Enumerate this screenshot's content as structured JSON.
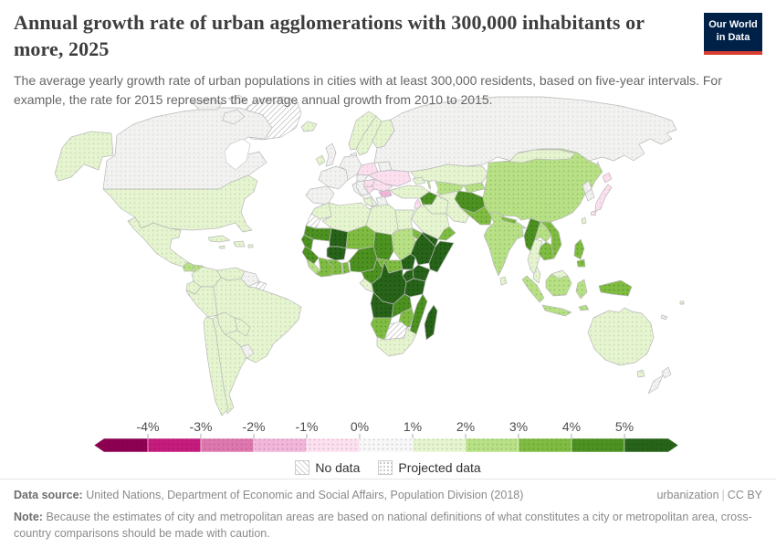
{
  "header": {
    "title": "Annual growth rate of urban agglomerations with 300,000 inhabitants or more, 2025",
    "subtitle": "The average yearly growth rate of urban populations in cities with at least 300,000 residents, based on five-year intervals. For example, the rate for 2015 represents the average annual growth from 2010 to 2015.",
    "logo": {
      "line1": "Our World",
      "line2": "in Data",
      "bg_color": "#002147",
      "accent_color": "#d73c32"
    }
  },
  "legend": {
    "tick_labels": [
      "-4%",
      "-3%",
      "-2%",
      "-1%",
      "0%",
      "1%",
      "2%",
      "3%",
      "4%",
      "5%"
    ],
    "colors": [
      "#8e0152",
      "#c51b7d",
      "#de77ae",
      "#f1b6da",
      "#fde0ef",
      "#f7f7f7",
      "#e6f5d0",
      "#b8e186",
      "#7fbc41",
      "#4d9221",
      "#276419"
    ],
    "no_data_label": "No data",
    "projected_label": "Projected data"
  },
  "footer": {
    "source_label": "Data source:",
    "source_text": "United Nations, Department of Economic and Social Affairs, Population Division (2018)",
    "link_label": "urbanization",
    "separator": "|",
    "license": "CC BY",
    "note_label": "Note:",
    "note_text": "Because the estimates of city and metropolitan areas are based on national definitions of what constitutes a city or metropolitan area, cross-country comparisons should be made with caution."
  },
  "chart_data": {
    "type": "choropleth",
    "title": "Annual growth rate of urban agglomerations with 300,000 inhabitants or more, 2025",
    "unit": "% per year",
    "scale": {
      "type": "diverging",
      "bins": [
        {
          "range": "< -4%",
          "color": "#8e0152"
        },
        {
          "range": "-4 to -3%",
          "color": "#c51b7d"
        },
        {
          "range": "-3 to -2%",
          "color": "#de77ae"
        },
        {
          "range": "-2 to -1%",
          "color": "#f1b6da"
        },
        {
          "range": "-1 to 0%",
          "color": "#fde0ef"
        },
        {
          "range": "0 to 1%",
          "color": "#f7f7f7"
        },
        {
          "range": "1 to 2%",
          "color": "#e6f5d0"
        },
        {
          "range": "2 to 3%",
          "color": "#b8e186"
        },
        {
          "range": "3 to 4%",
          "color": "#7fbc41"
        },
        {
          "range": "4 to 5%",
          "color": "#4d9221"
        },
        {
          "range": "> 5%",
          "color": "#276419"
        }
      ],
      "textures": {
        "all_values": "dotted (projected data)",
        "no_data": "diagonal hatch"
      }
    },
    "regions": [
      {
        "name": "Canada",
        "bin": "0 to 1%"
      },
      {
        "name": "United States",
        "bin": "1 to 2%"
      },
      {
        "name": "Greenland",
        "bin": "No data"
      },
      {
        "name": "Mexico",
        "bin": "1 to 2%"
      },
      {
        "name": "Guatemala",
        "bin": "2 to 3%"
      },
      {
        "name": "Honduras",
        "bin": "2 to 3%"
      },
      {
        "name": "Nicaragua",
        "bin": "1 to 2%"
      },
      {
        "name": "Panama",
        "bin": "1 to 2%"
      },
      {
        "name": "Cuba",
        "bin": "1 to 2%"
      },
      {
        "name": "Hispaniola",
        "bin": "1 to 2%"
      },
      {
        "name": "Colombia",
        "bin": "1 to 2%"
      },
      {
        "name": "Venezuela",
        "bin": "1 to 2%"
      },
      {
        "name": "Guyana",
        "bin": "0 to 1%"
      },
      {
        "name": "Suriname",
        "bin": "0 to 1%"
      },
      {
        "name": "French Guiana",
        "bin": "No data"
      },
      {
        "name": "Ecuador",
        "bin": "1 to 2%"
      },
      {
        "name": "Peru",
        "bin": "1 to 2%"
      },
      {
        "name": "Brazil",
        "bin": "1 to 2%"
      },
      {
        "name": "Bolivia",
        "bin": "1 to 2%"
      },
      {
        "name": "Paraguay",
        "bin": "1 to 2%"
      },
      {
        "name": "Chile",
        "bin": "1 to 2%"
      },
      {
        "name": "Argentina",
        "bin": "1 to 2%"
      },
      {
        "name": "Uruguay",
        "bin": "0 to 1%"
      },
      {
        "name": "Iceland",
        "bin": "1 to 2%"
      },
      {
        "name": "Ireland",
        "bin": "1 to 2%"
      },
      {
        "name": "United Kingdom",
        "bin": "0 to 1%"
      },
      {
        "name": "Norway",
        "bin": "1 to 2%"
      },
      {
        "name": "Sweden",
        "bin": "1 to 2%"
      },
      {
        "name": "Finland",
        "bin": "1 to 2%"
      },
      {
        "name": "France",
        "bin": "0 to 1%"
      },
      {
        "name": "Spain",
        "bin": "0 to 1%"
      },
      {
        "name": "Germany",
        "bin": "0 to 1%"
      },
      {
        "name": "Italy",
        "bin": "0 to 1%"
      },
      {
        "name": "Poland",
        "bin": "-1 to 0%"
      },
      {
        "name": "Lithuania",
        "bin": "-1 to 0%"
      },
      {
        "name": "Latvia",
        "bin": "-1 to 0%"
      },
      {
        "name": "Belarus",
        "bin": "0 to 1%"
      },
      {
        "name": "Ukraine",
        "bin": "-1 to 0%"
      },
      {
        "name": "Hungary",
        "bin": "-1 to 0%"
      },
      {
        "name": "Romania",
        "bin": "-1 to 0%"
      },
      {
        "name": "Serbia",
        "bin": "-1 to 0%"
      },
      {
        "name": "Bulgaria",
        "bin": "-2 to -1%"
      },
      {
        "name": "Greece",
        "bin": "0 to 1%"
      },
      {
        "name": "Russia",
        "bin": "0 to 1%"
      },
      {
        "name": "Kazakhstan",
        "bin": "1 to 2%"
      },
      {
        "name": "Uzbekistan",
        "bin": "2 to 3%"
      },
      {
        "name": "Turkey",
        "bin": "1 to 2%"
      },
      {
        "name": "Syria",
        "bin": "4 to 5%"
      },
      {
        "name": "Iraq",
        "bin": "1 to 2%"
      },
      {
        "name": "Iran",
        "bin": "1 to 2%"
      },
      {
        "name": "Afghanistan",
        "bin": "4 to 5%"
      },
      {
        "name": "Pakistan",
        "bin": "3 to 4%"
      },
      {
        "name": "Saudi Arabia",
        "bin": "1 to 2%"
      },
      {
        "name": "Yemen",
        "bin": "> 5%"
      },
      {
        "name": "Oman",
        "bin": "3 to 4%"
      },
      {
        "name": "Morocco",
        "bin": "1 to 2%"
      },
      {
        "name": "Algeria",
        "bin": "1 to 2%"
      },
      {
        "name": "Libya",
        "bin": "1 to 2%"
      },
      {
        "name": "Egypt",
        "bin": "1 to 2%"
      },
      {
        "name": "Western Sahara",
        "bin": "No data"
      },
      {
        "name": "Mauritania",
        "bin": "4 to 5%"
      },
      {
        "name": "Mali",
        "bin": "> 5%"
      },
      {
        "name": "Niger",
        "bin": "3 to 4%"
      },
      {
        "name": "Chad",
        "bin": "4 to 5%"
      },
      {
        "name": "Sudan",
        "bin": "2 to 3%"
      },
      {
        "name": "Burkina Faso",
        "bin": "> 5%"
      },
      {
        "name": "Senegal",
        "bin": "4 to 5%"
      },
      {
        "name": "Guinea",
        "bin": "4 to 5%"
      },
      {
        "name": "Cote d'Ivoire",
        "bin": "3 to 4%"
      },
      {
        "name": "Ghana",
        "bin": "3 to 4%"
      },
      {
        "name": "Nigeria",
        "bin": "4 to 5%"
      },
      {
        "name": "Cameroon",
        "bin": "4 to 5%"
      },
      {
        "name": "Central African Republic",
        "bin": "3 to 4%"
      },
      {
        "name": "South Sudan",
        "bin": "> 5%"
      },
      {
        "name": "Ethiopia",
        "bin": "> 5%"
      },
      {
        "name": "Somalia",
        "bin": "> 5%"
      },
      {
        "name": "Kenya",
        "bin": "> 5%"
      },
      {
        "name": "Uganda",
        "bin": "> 5%"
      },
      {
        "name": "Democratic Republic of Congo",
        "bin": "> 5%"
      },
      {
        "name": "Gabon",
        "bin": "1 to 2%"
      },
      {
        "name": "Tanzania",
        "bin": "> 5%"
      },
      {
        "name": "Angola",
        "bin": "> 5%"
      },
      {
        "name": "Zambia",
        "bin": "4 to 5%"
      },
      {
        "name": "Mozambique",
        "bin": "4 to 5%"
      },
      {
        "name": "Zimbabwe",
        "bin": "3 to 4%"
      },
      {
        "name": "Namibia",
        "bin": "3 to 4%"
      },
      {
        "name": "Botswana",
        "bin": "No data"
      },
      {
        "name": "South Africa",
        "bin": "1 to 2%"
      },
      {
        "name": "Madagascar",
        "bin": "> 5%"
      },
      {
        "name": "China",
        "bin": "2 to 3%"
      },
      {
        "name": "Mongolia",
        "bin": "1 to 2%"
      },
      {
        "name": "North Korea",
        "bin": "0 to 1%"
      },
      {
        "name": "South Korea",
        "bin": "0 to 1%"
      },
      {
        "name": "Japan",
        "bin": "-1 to 0%"
      },
      {
        "name": "India",
        "bin": "2 to 3%"
      },
      {
        "name": "Nepal",
        "bin": "3 to 4%"
      },
      {
        "name": "Bangladesh",
        "bin": "0 to 1%"
      },
      {
        "name": "Sri Lanka",
        "bin": "1 to 2%"
      },
      {
        "name": "Myanmar",
        "bin": "4 to 5%"
      },
      {
        "name": "Thailand",
        "bin": "1 to 2%"
      },
      {
        "name": "Laos",
        "bin": "2 to 3%"
      },
      {
        "name": "Vietnam",
        "bin": "3 to 4%"
      },
      {
        "name": "Cambodia",
        "bin": "3 to 4%"
      },
      {
        "name": "Malaysia",
        "bin": "1 to 2%"
      },
      {
        "name": "Indonesia",
        "bin": "2 to 3%"
      },
      {
        "name": "Philippines",
        "bin": "3 to 4%"
      },
      {
        "name": "Papua New Guinea",
        "bin": "3 to 4%"
      },
      {
        "name": "Australia",
        "bin": "1 to 2%"
      },
      {
        "name": "New Zealand",
        "bin": "0 to 1%"
      }
    ]
  }
}
